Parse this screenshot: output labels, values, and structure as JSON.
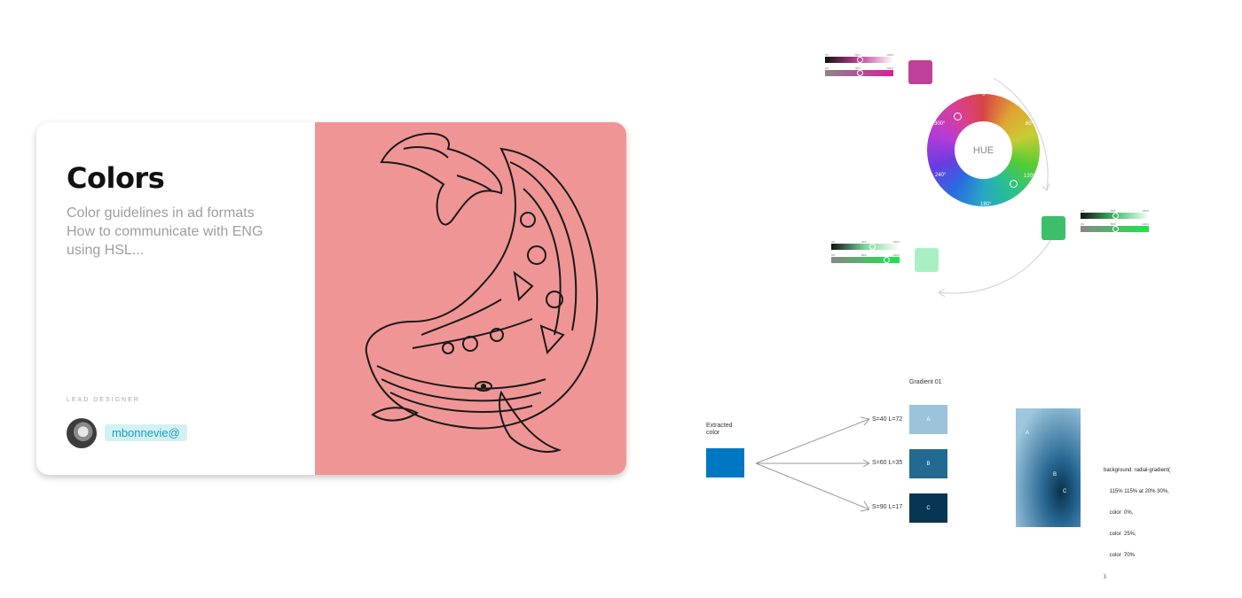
{
  "card": {
    "title": "Colors",
    "subtitle_lines": [
      "Color guidelines  in ad formats",
      "How to communicate with ENG",
      "using HSL..."
    ],
    "role": "LEAD DESIGNER",
    "handle": "mbonnevie@",
    "art_background": "#f09595"
  },
  "hsl_sliders": {
    "magenta": {
      "top_ticks": [
        "0%",
        "50%",
        "100%"
      ],
      "bottom_ticks": [
        "0%",
        "40%",
        "100%"
      ],
      "swatch_color": "#c0409a",
      "top_level": 0.5,
      "bottom_level": 0.5
    },
    "green": {
      "top_ticks": [
        "0%",
        "50%",
        "100%"
      ],
      "bottom_ticks": [
        "0%",
        "50%",
        "100%"
      ],
      "swatch_color": "#3dbf6a",
      "top_level": 0.5,
      "bottom_level": 0.5
    },
    "mint": {
      "top_ticks": [
        "0%",
        "50%",
        "100%"
      ],
      "bottom_ticks": [
        "0%",
        "80%",
        "100%"
      ],
      "swatch_color": "#a8f0c4",
      "top_level": 0.6,
      "bottom_level": 0.8
    }
  },
  "hue_wheel": {
    "label": "HUE",
    "degrees": {
      "d0": "0°",
      "d60": "60°",
      "d120": "120°",
      "d180": "180°",
      "d240": "240°",
      "d300": "300°"
    }
  },
  "gradient_diagram": {
    "extracted_label_1": "Extracted",
    "extracted_label_2": "color",
    "extracted_color": "#0077c2",
    "title": "Gradient 01",
    "rows": [
      {
        "label": "S=40 L=72",
        "letter": "A",
        "color": "#9cc3d9"
      },
      {
        "label": "S=60 L=35",
        "letter": "B",
        "color": "#236a92"
      },
      {
        "label": "S=90 L=17",
        "letter": "C",
        "color": "#063652"
      }
    ],
    "radial_labels": [
      "A",
      "B",
      "C"
    ],
    "code_lines": [
      "background: radial-gradient(",
      "    115% 115% at 20% 30%,",
      "    color  0%,",
      "    color  25%,",
      "    color  70%",
      ");"
    ]
  }
}
